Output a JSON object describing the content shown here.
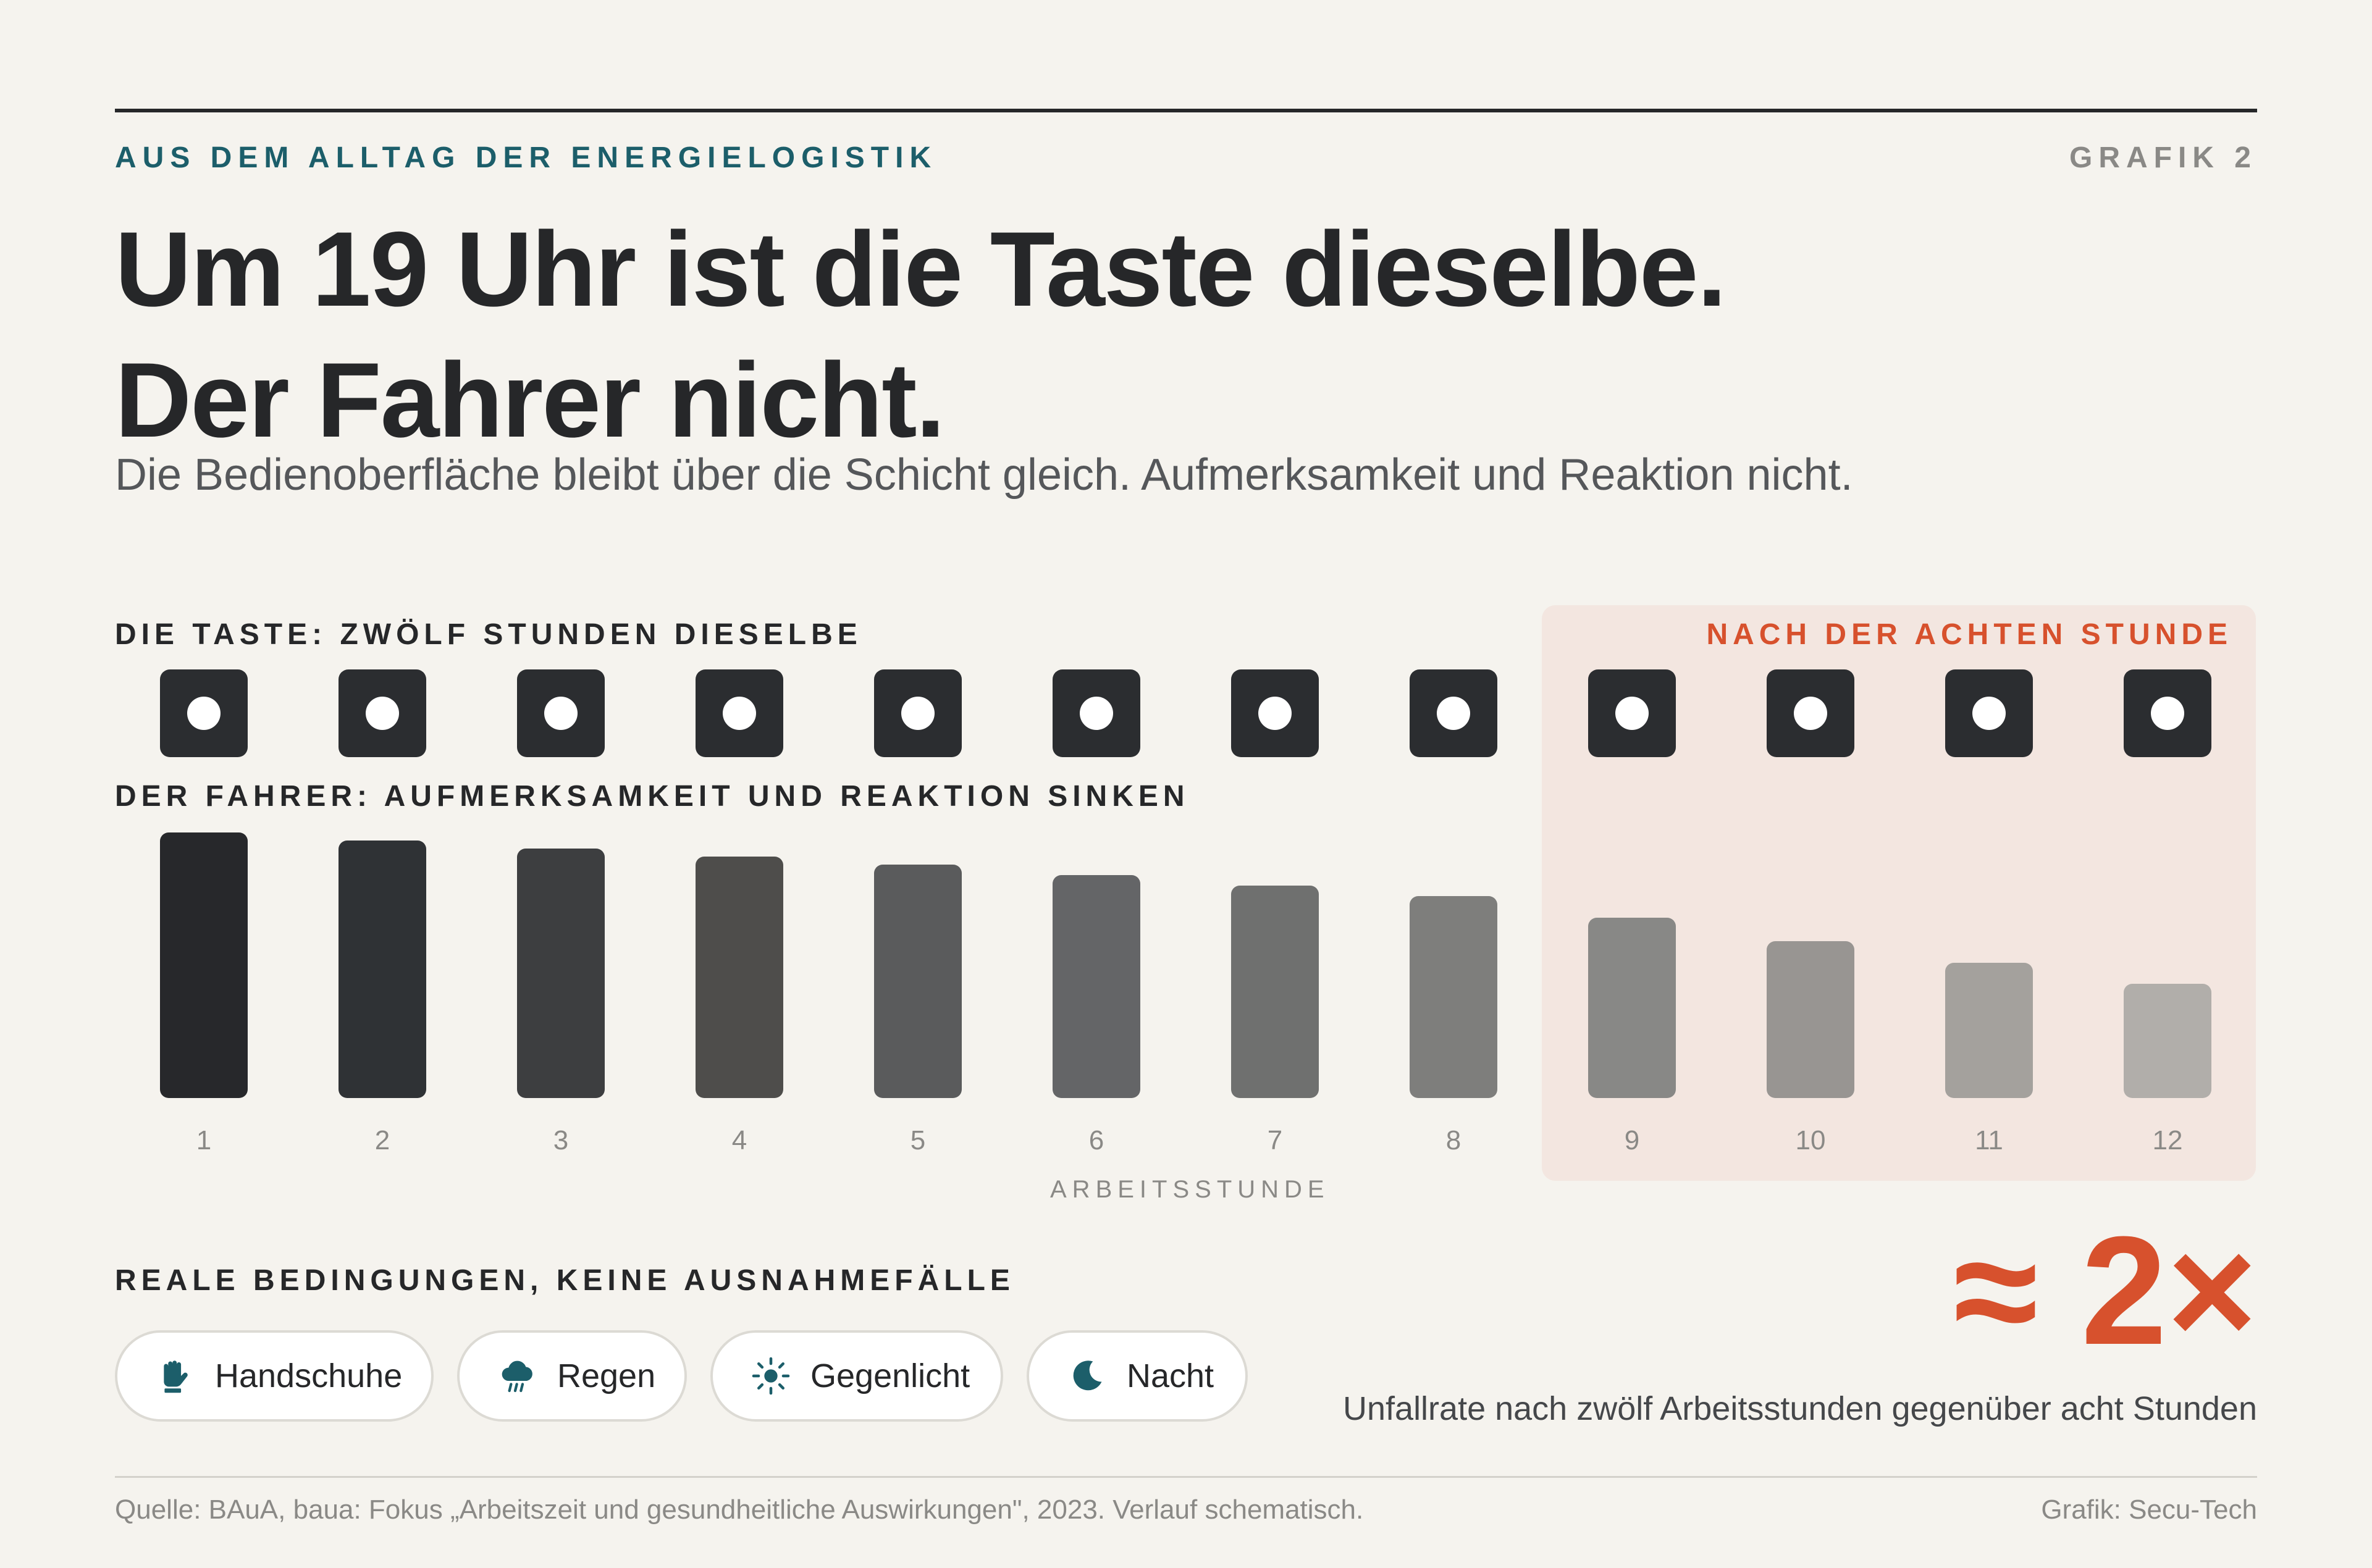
{
  "header": {
    "kicker": "AUS DEM ALLTAG DER ENERGIELOGISTIK",
    "graphic_label": "GRAFIK 2",
    "title_line1": "Um 19 Uhr ist die Taste dieselbe.",
    "title_line2": "Der Fahrer nicht.",
    "subtitle": "Die Bedienoberfläche bleibt über die Schicht gleich. Aufmerksamkeit und Reaktion nicht."
  },
  "chart_data": {
    "type": "bar",
    "key_row_label": "DIE TASTE: ZWÖLF STUNDEN DIESELBE",
    "driver_row_label": "DER FAHRER: AUFMERKSAMKEIT UND REAKTION SINKEN",
    "highlight_label": "NACH DER ACHTEN STUNDE",
    "highlight_from_hour": 9,
    "xlabel": "ARBEITSSTUNDE",
    "categories": [
      "1",
      "2",
      "3",
      "4",
      "5",
      "6",
      "7",
      "8",
      "9",
      "10",
      "11",
      "12"
    ],
    "values": [
      1.0,
      0.97,
      0.94,
      0.91,
      0.88,
      0.84,
      0.8,
      0.76,
      0.68,
      0.59,
      0.51,
      0.43
    ],
    "bar_colors": [
      "#27282b",
      "#2f3235",
      "#3d3e40",
      "#4e4d4b",
      "#5a5b5c",
      "#646567",
      "#6f706f",
      "#7e7e7c",
      "#888886",
      "#989592",
      "#a4a19d",
      "#b1aeaa"
    ],
    "ylim": [
      0,
      1
    ]
  },
  "conditions": {
    "heading": "REALE BEDINGUNGEN, KEINE AUSNAHMEFÄLLE",
    "items": [
      {
        "label": "Handschuhe",
        "icon": "glove-icon"
      },
      {
        "label": "Regen",
        "icon": "rain-cloud-icon"
      },
      {
        "label": "Gegenlicht",
        "icon": "sun-icon"
      },
      {
        "label": "Nacht",
        "icon": "moon-icon"
      }
    ]
  },
  "stat": {
    "value": "≈ 2×",
    "caption": "Unfallrate nach zwölf Arbeitsstunden gegenüber acht Stunden"
  },
  "footer": {
    "source": "Quelle: BAuA, baua: Fokus „Arbeitszeit und gesundheitliche Auswirkungen\", 2023. Verlauf schematisch.",
    "credit": "Grafik: Secu-Tech"
  },
  "colors": {
    "accent": "#d7512d",
    "teal": "#1c5e6a",
    "key": "#2b2d30",
    "highlight_bg": "#f3e6e0",
    "background": "#f5f3ee"
  }
}
